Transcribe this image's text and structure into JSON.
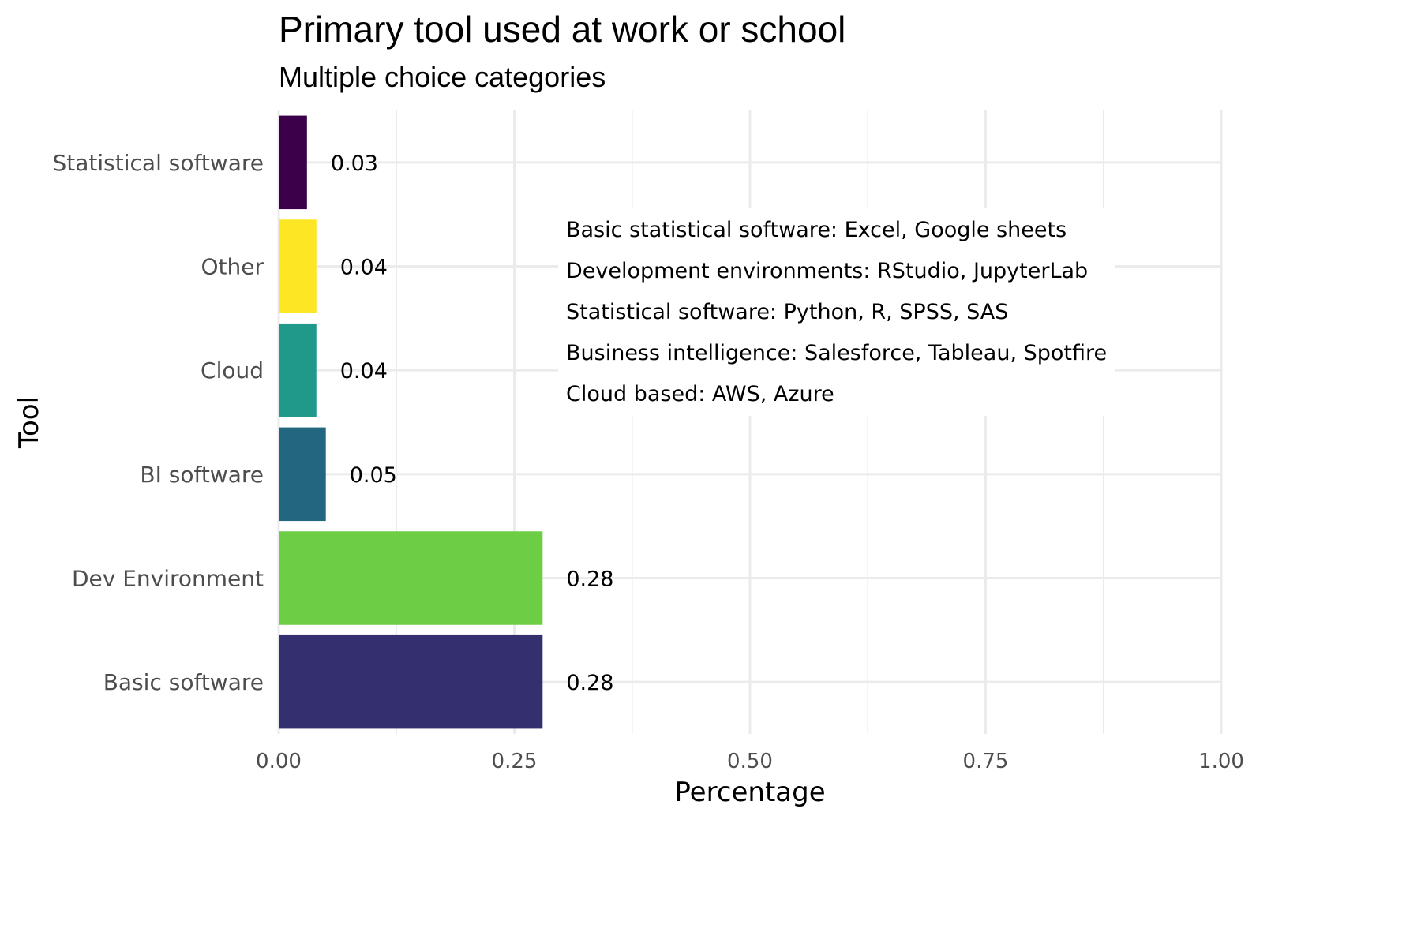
{
  "chart_data": {
    "type": "bar",
    "orientation": "horizontal",
    "title": "Primary tool used at work or school",
    "subtitle": "Multiple choice categories",
    "xlabel": "Percentage",
    "ylabel": "Tool",
    "xlim": [
      0,
      1
    ],
    "xticks": [
      "0.00",
      "0.25",
      "0.50",
      "0.75",
      "1.00"
    ],
    "grid": true,
    "categories": [
      "Statistical software",
      "Other",
      "Cloud",
      "BI software",
      "Dev Environment",
      "Basic software"
    ],
    "values": [
      0.03,
      0.04,
      0.04,
      0.05,
      0.28,
      0.28
    ],
    "value_labels": [
      "0.03",
      "0.04",
      "0.04",
      "0.05",
      "0.28",
      "0.28"
    ],
    "colors": [
      "#3b0049",
      "#fde725",
      "#21998a",
      "#22677f",
      "#6dcd45",
      "#34306f"
    ],
    "annotation": [
      "Basic statistical software: Excel, Google sheets",
      "Development environments: RStudio, JupyterLab",
      "Statistical software: Python, R, SPSS, SAS",
      "Business intelligence: Salesforce, Tableau, Spotfire",
      "Cloud based: AWS, Azure"
    ]
  }
}
